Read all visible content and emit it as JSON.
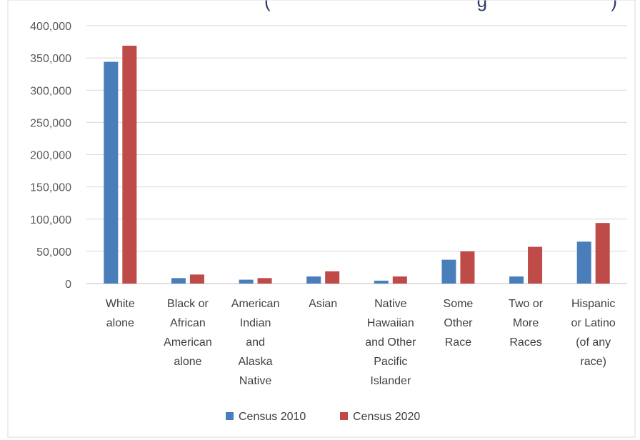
{
  "chart_data": {
    "type": "bar",
    "title_fragment": "(                                        g                        )",
    "categories": [
      [
        "White",
        "alone"
      ],
      [
        "Black or",
        "African",
        "American",
        "alone"
      ],
      [
        "American",
        "Indian",
        "and",
        "Alaska",
        "Native"
      ],
      [
        "Asian"
      ],
      [
        "Native",
        "Hawaiian",
        "and Other",
        "Pacific",
        "Islander"
      ],
      [
        "Some",
        "Other",
        "Race"
      ],
      [
        "Two or",
        "More",
        "Races"
      ],
      [
        "Hispanic",
        "or Latino",
        "(of any",
        "race)"
      ]
    ],
    "series": [
      {
        "name": "Census 2010",
        "color": "#4a7ebb",
        "values": [
          344000,
          8500,
          6000,
          11000,
          4500,
          37000,
          11000,
          65000
        ]
      },
      {
        "name": "Census 2020",
        "color": "#be4b48",
        "values": [
          369000,
          14000,
          8500,
          19000,
          11000,
          50000,
          57000,
          94000
        ]
      }
    ],
    "ylim": [
      0,
      400000
    ],
    "yticks": [
      "0",
      "50,000",
      "100,000",
      "150,000",
      "200,000",
      "250,000",
      "300,000",
      "350,000",
      "400,000"
    ],
    "grid": true,
    "legend_position": "bottom",
    "gridline_color": "#d9d9d9",
    "axis_color": "#bfbfbf"
  }
}
